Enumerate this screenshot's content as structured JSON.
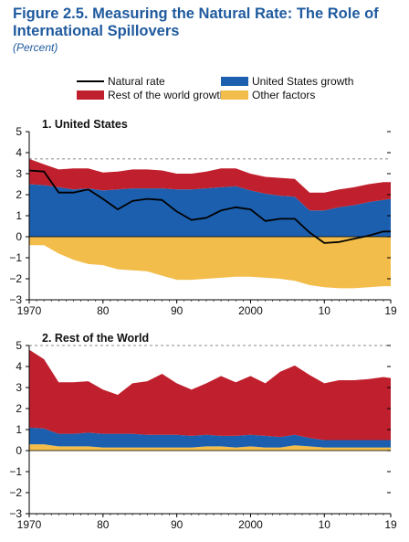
{
  "header": {
    "title": "Figure 2.5. Measuring the Natural Rate: The Role of International Spillovers",
    "subtitle": "(Percent)"
  },
  "legend": [
    {
      "label": "Natural rate",
      "kind": "line",
      "color": "#000000"
    },
    {
      "label": "United States growth",
      "kind": "area",
      "color": "#1b5fae"
    },
    {
      "label": "Rest of the world growth",
      "kind": "area",
      "color": "#c0202e"
    },
    {
      "label": "Other factors",
      "kind": "area",
      "color": "#f2bd4a"
    }
  ],
  "chart_data": [
    {
      "type": "area",
      "title": "1. United States",
      "xlabel": "",
      "ylabel": "",
      "xlim": [
        1970,
        2019
      ],
      "ylim": [
        -3,
        5
      ],
      "yticks": [
        "5",
        "4",
        "3",
        "2",
        "1",
        "0",
        "−1",
        "−2",
        "−3"
      ],
      "xticks": [
        {
          "value": 1970,
          "label": "1970"
        },
        {
          "value": 1980,
          "label": "80"
        },
        {
          "value": 1990,
          "label": "90"
        },
        {
          "value": 2000,
          "label": "2000"
        },
        {
          "value": 2010,
          "label": "10"
        },
        {
          "value": 2019,
          "label": "19"
        }
      ],
      "x": [
        1970,
        1972,
        1974,
        1976,
        1978,
        1980,
        1982,
        1984,
        1986,
        1988,
        1990,
        1992,
        1994,
        1996,
        1998,
        2000,
        2002,
        2004,
        2006,
        2008,
        2010,
        2012,
        2014,
        2016,
        2018,
        2019
      ],
      "series": [
        {
          "name": "Other factors",
          "color": "#f2bd4a",
          "values": [
            -0.4,
            -0.4,
            -0.8,
            -1.1,
            -1.3,
            -1.35,
            -1.55,
            -1.6,
            -1.65,
            -1.85,
            -2.05,
            -2.05,
            -2.0,
            -1.95,
            -1.9,
            -1.9,
            -1.95,
            -2.0,
            -2.1,
            -2.3,
            -2.4,
            -2.45,
            -2.45,
            -2.4,
            -2.35,
            -2.35
          ]
        },
        {
          "name": "United States growth",
          "color": "#1b5fae",
          "values": [
            2.5,
            2.45,
            2.35,
            2.25,
            2.3,
            2.2,
            2.25,
            2.3,
            2.3,
            2.3,
            2.25,
            2.25,
            2.3,
            2.35,
            2.4,
            2.2,
            2.05,
            1.95,
            1.9,
            1.25,
            1.25,
            1.4,
            1.5,
            1.65,
            1.75,
            1.8
          ]
        },
        {
          "name": "Rest of the world growth",
          "color": "#c0202e",
          "values": [
            1.2,
            1.0,
            0.85,
            1.0,
            0.95,
            0.85,
            0.85,
            0.9,
            0.9,
            0.85,
            0.75,
            0.75,
            0.8,
            0.9,
            0.85,
            0.8,
            0.8,
            0.85,
            0.85,
            0.85,
            0.85,
            0.85,
            0.85,
            0.85,
            0.85,
            0.8
          ]
        }
      ],
      "line": {
        "name": "Natural rate",
        "color": "#000000",
        "values": [
          3.15,
          3.1,
          2.1,
          2.1,
          2.25,
          1.8,
          1.3,
          1.7,
          1.8,
          1.75,
          1.2,
          0.8,
          0.9,
          1.25,
          1.4,
          1.3,
          0.75,
          0.85,
          0.85,
          0.2,
          -0.3,
          -0.25,
          -0.1,
          0.05,
          0.25,
          0.25
        ]
      },
      "reference_line": {
        "value": 3.7,
        "style": "dashed"
      }
    },
    {
      "type": "area",
      "title": "2. Rest of the World",
      "xlabel": "",
      "ylabel": "",
      "xlim": [
        1970,
        2019
      ],
      "ylim": [
        -3,
        5
      ],
      "yticks": [
        "5",
        "4",
        "3",
        "2",
        "1",
        "0",
        "−1",
        "−2",
        "−3"
      ],
      "xticks": [
        {
          "value": 1970,
          "label": "1970"
        },
        {
          "value": 1980,
          "label": "80"
        },
        {
          "value": 1990,
          "label": "90"
        },
        {
          "value": 2000,
          "label": "2000"
        },
        {
          "value": 2010,
          "label": "10"
        },
        {
          "value": 2019,
          "label": "19"
        }
      ],
      "x": [
        1970,
        1972,
        1974,
        1976,
        1978,
        1980,
        1982,
        1984,
        1986,
        1988,
        1990,
        1992,
        1994,
        1996,
        1998,
        2000,
        2002,
        2004,
        2006,
        2008,
        2010,
        2012,
        2014,
        2016,
        2018,
        2019
      ],
      "series": [
        {
          "name": "Other factors",
          "color": "#f2bd4a",
          "values": [
            0.3,
            0.3,
            0.2,
            0.2,
            0.2,
            0.15,
            0.15,
            0.15,
            0.15,
            0.15,
            0.15,
            0.15,
            0.2,
            0.2,
            0.15,
            0.2,
            0.15,
            0.15,
            0.25,
            0.2,
            0.15,
            0.15,
            0.15,
            0.15,
            0.15,
            0.15
          ]
        },
        {
          "name": "United States growth",
          "color": "#1b5fae",
          "values": [
            0.8,
            0.75,
            0.6,
            0.6,
            0.65,
            0.65,
            0.65,
            0.65,
            0.6,
            0.6,
            0.6,
            0.55,
            0.55,
            0.5,
            0.55,
            0.55,
            0.55,
            0.5,
            0.5,
            0.4,
            0.35,
            0.35,
            0.35,
            0.35,
            0.35,
            0.35
          ]
        },
        {
          "name": "Rest of the world growth",
          "color": "#c0202e",
          "values": [
            3.7,
            3.3,
            2.45,
            2.45,
            2.45,
            2.1,
            1.85,
            2.4,
            2.55,
            2.9,
            2.45,
            2.2,
            2.45,
            2.85,
            2.55,
            2.8,
            2.5,
            3.1,
            3.3,
            3.0,
            2.7,
            2.85,
            2.85,
            2.9,
            3.0,
            2.95
          ]
        }
      ],
      "reference_line": {
        "value": 5.0,
        "style": "dashed"
      }
    }
  ]
}
